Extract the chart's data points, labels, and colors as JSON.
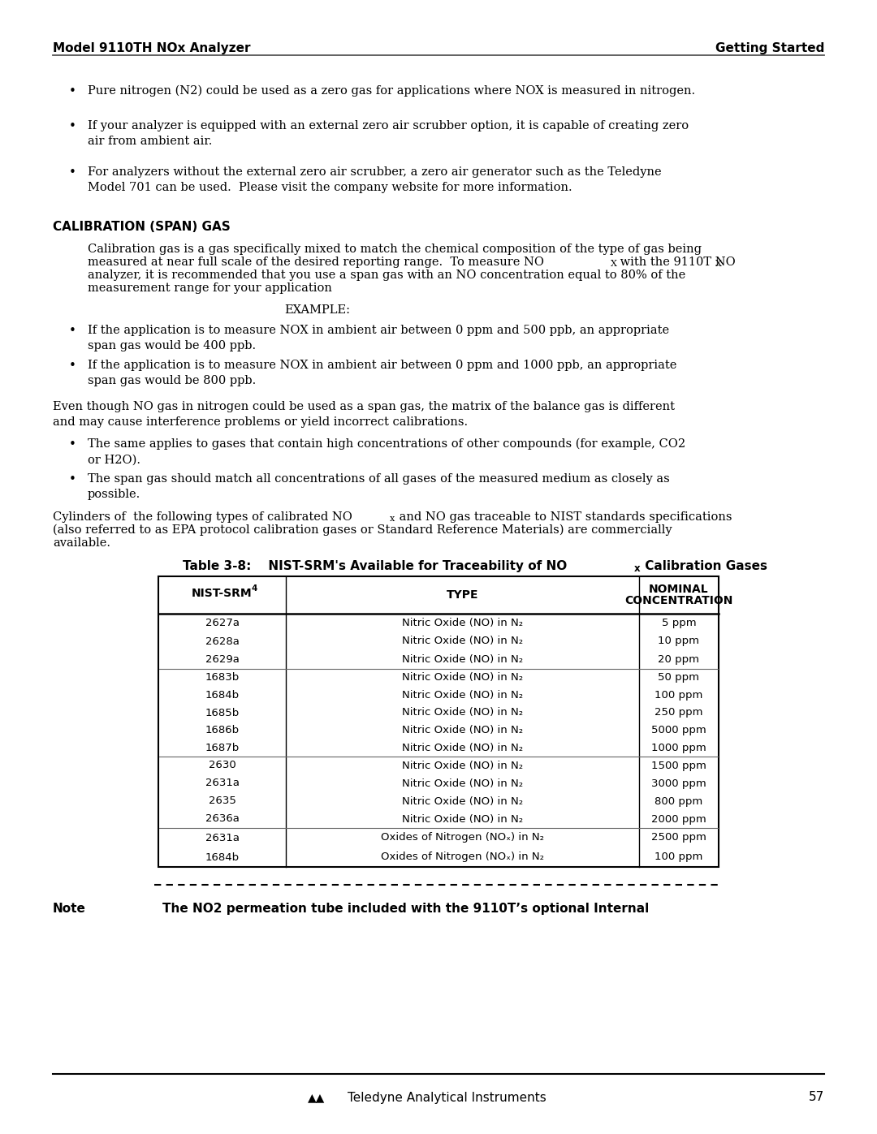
{
  "header_left": "Model 9110TH NOx Analyzer",
  "header_right": "Getting Started",
  "footer_text": "Teledyne Analytical Instruments",
  "footer_page": "57",
  "bullet_points": [
    "Pure nitrogen (N2) could be used as a zero gas for applications where NOX is measured in nitrogen.",
    "If your analyzer is equipped with an external zero air scrubber option, it is capable of creating zero\nair from ambient air.",
    "For analyzers without the external zero air scrubber, a zero air generator such as the Teledyne\nModel 701 can be used.  Please visit the company website for more information."
  ],
  "section_title": "CALIBRATION (SPAN) GAS",
  "example_label": "EXAMPLE:",
  "example_bullets": [
    "If the application is to measure NOX in ambient air between 0 ppm and 500 ppb, an appropriate\nspan gas would be 400 ppb.",
    "If the application is to measure NOX in ambient air between 0 ppm and 1000 ppb, an appropriate\nspan gas would be 800 ppb."
  ],
  "body_text2": "Even though NO gas in nitrogen could be used as a span gas, the matrix of the balance gas is different\nand may cause interference problems or yield incorrect calibrations.",
  "bullet_points2": [
    "The same applies to gases that contain high concentrations of other compounds (for example, CO2\nor H2O).",
    "The span gas should match all concentrations of all gases of the measured medium as closely as\npossible."
  ],
  "table_groups": [
    {
      "srm": [
        "2627a",
        "2628a",
        "2629a"
      ],
      "type": [
        "Nitric Oxide (NO) in N₂",
        "Nitric Oxide (NO) in N₂",
        "Nitric Oxide (NO) in N₂"
      ],
      "conc": [
        "5 ppm",
        "10 ppm",
        "20 ppm"
      ]
    },
    {
      "srm": [
        "1683b",
        "1684b",
        "1685b",
        "1686b",
        "1687b"
      ],
      "type": [
        "Nitric Oxide (NO) in N₂",
        "Nitric Oxide (NO) in N₂",
        "Nitric Oxide (NO) in N₂",
        "Nitric Oxide (NO) in N₂",
        "Nitric Oxide (NO) in N₂"
      ],
      "conc": [
        "50 ppm",
        "100 ppm",
        "250 ppm",
        "5000 ppm",
        "1000 ppm"
      ]
    },
    {
      "srm": [
        "2630",
        "2631a",
        "2635",
        "2636a"
      ],
      "type": [
        "Nitric Oxide (NO) in N₂",
        "Nitric Oxide (NO) in N₂",
        "Nitric Oxide (NO) in N₂",
        "Nitric Oxide (NO) in N₂"
      ],
      "conc": [
        "1500 ppm",
        "3000 ppm",
        "800 ppm",
        "2000 ppm"
      ]
    },
    {
      "srm": [
        "2631a",
        "1684b"
      ],
      "type": [
        "Oxides of Nitrogen (NOₓ) in N₂",
        "Oxides of Nitrogen (NOₓ) in N₂"
      ],
      "conc": [
        "2500 ppm",
        "100 ppm"
      ]
    }
  ],
  "note_label": "Note",
  "note_text": "The NO2 permeation tube included with the 9110T’s optional Internal",
  "bg_color": "#ffffff",
  "text_color": "#000000"
}
